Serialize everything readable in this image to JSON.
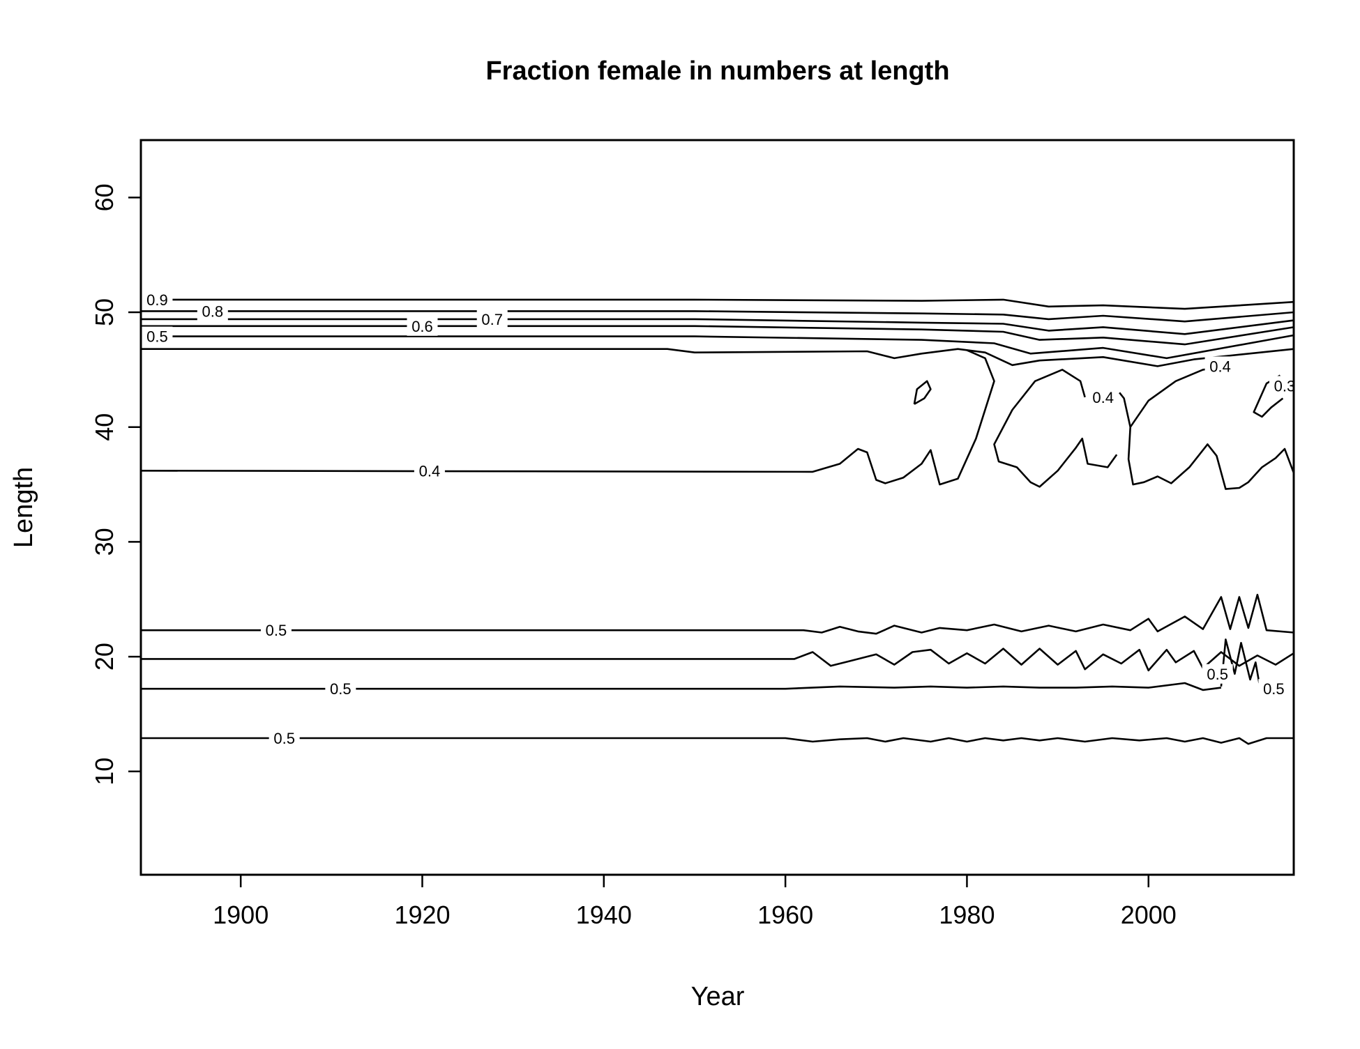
{
  "chart_data": {
    "type": "contour",
    "title": "Fraction female in numbers at length",
    "xlabel": "Year",
    "ylabel": "Length",
    "xlim": [
      1889,
      2016
    ],
    "ylim": [
      1,
      65
    ],
    "xticks": [
      1900,
      1920,
      1940,
      1960,
      1980,
      2000
    ],
    "yticks": [
      10,
      20,
      30,
      40,
      50,
      60
    ],
    "x_tick_labels": [
      "1900",
      "1920",
      "1940",
      "1960",
      "1980",
      "2000"
    ],
    "y_tick_labels": [
      "10",
      "20",
      "30",
      "40",
      "50",
      "60"
    ],
    "grid": false,
    "legend": "none",
    "line_color": "#000000",
    "contours": [
      {
        "level": 0.9,
        "label": "0.9",
        "points": [
          [
            1889,
            51.1
          ],
          [
            1950,
            51.1
          ],
          [
            1975,
            51.0
          ],
          [
            1984,
            51.1
          ],
          [
            1989,
            50.5
          ],
          [
            1995,
            50.6
          ],
          [
            2004,
            50.3
          ],
          [
            2016,
            50.9
          ]
        ]
      },
      {
        "level": 0.8,
        "label": "0.8",
        "points": [
          [
            1889,
            50.1
          ],
          [
            1950,
            50.1
          ],
          [
            1975,
            49.9
          ],
          [
            1984,
            49.8
          ],
          [
            1989,
            49.4
          ],
          [
            1995,
            49.7
          ],
          [
            2004,
            49.2
          ],
          [
            2016,
            50.0
          ]
        ]
      },
      {
        "level": 0.7,
        "label": "0.7",
        "points": [
          [
            1889,
            49.4
          ],
          [
            1950,
            49.4
          ],
          [
            1975,
            49.1
          ],
          [
            1984,
            49.0
          ],
          [
            1989,
            48.4
          ],
          [
            1995,
            48.7
          ],
          [
            2004,
            48.1
          ],
          [
            2016,
            49.3
          ]
        ]
      },
      {
        "level": 0.6,
        "label": "0.6",
        "points": [
          [
            1889,
            48.8
          ],
          [
            1950,
            48.8
          ],
          [
            1975,
            48.5
          ],
          [
            1984,
            48.3
          ],
          [
            1988,
            47.6
          ],
          [
            1995,
            47.8
          ],
          [
            2004,
            47.2
          ],
          [
            2016,
            48.7
          ]
        ]
      },
      {
        "level": 0.5,
        "label": "0.5",
        "points": [
          [
            1889,
            47.9
          ],
          [
            1950,
            47.9
          ],
          [
            1975,
            47.6
          ],
          [
            1983,
            47.3
          ],
          [
            1987,
            46.4
          ],
          [
            1995,
            46.9
          ],
          [
            2002,
            46.0
          ],
          [
            2016,
            48.0
          ]
        ]
      },
      {
        "level": 0.4,
        "label": "",
        "points": [
          [
            1889,
            46.8
          ],
          [
            1947,
            46.8
          ],
          [
            1950,
            46.5
          ],
          [
            1969,
            46.6
          ],
          [
            1972,
            46.0
          ],
          [
            1975,
            46.4
          ],
          [
            1979,
            46.8
          ],
          [
            1982,
            46.5
          ],
          [
            1985,
            45.4
          ],
          [
            1988,
            45.8
          ],
          [
            1995,
            46.1
          ],
          [
            2001,
            45.3
          ],
          [
            2005,
            45.9
          ],
          [
            2016,
            46.8
          ]
        ]
      },
      {
        "level": 0.4,
        "label": "0.4",
        "points": [
          [
            1889,
            36.2
          ],
          [
            1963,
            36.1
          ],
          [
            1966,
            36.8
          ],
          [
            1968,
            38.1
          ],
          [
            1969,
            37.8
          ],
          [
            1970,
            35.4
          ],
          [
            1971,
            35.1
          ],
          [
            1973,
            35.6
          ],
          [
            1975,
            36.8
          ],
          [
            1976,
            38.0
          ],
          [
            1977,
            35.0
          ],
          [
            1979,
            35.5
          ],
          [
            1981,
            39.0
          ],
          [
            1983,
            44.0
          ],
          [
            1982,
            46.0
          ],
          [
            1980,
            46.7
          ]
        ]
      },
      {
        "level": 0.4,
        "label": "",
        "points": [
          [
            1974.2,
            42.0
          ],
          [
            1974.5,
            43.3
          ],
          [
            1975.6,
            44.0
          ],
          [
            1976.0,
            43.3
          ],
          [
            1975.3,
            42.5
          ],
          [
            1974.2,
            42.0
          ]
        ]
      },
      {
        "level": 0.4,
        "label": "0.4",
        "points": [
          [
            1993.0,
            42.6
          ],
          [
            1992.5,
            44.0
          ],
          [
            1990.5,
            45.0
          ],
          [
            1987.5,
            44.0
          ],
          [
            1985.0,
            41.5
          ],
          [
            1983.0,
            38.5
          ],
          [
            1983.5,
            37.0
          ],
          [
            1985.5,
            36.5
          ],
          [
            1987,
            35.2
          ],
          [
            1988,
            34.8
          ],
          [
            1990,
            36.2
          ],
          [
            1992,
            38.2
          ],
          [
            1992.7,
            39.0
          ],
          [
            1993.3,
            36.8
          ],
          [
            1995.5,
            36.5
          ],
          [
            1996.5,
            37.6
          ]
        ]
      },
      {
        "level": 0.4,
        "label": "0.4",
        "points": [
          [
            1996.8,
            43.0
          ],
          [
            1997.3,
            42.5
          ],
          [
            1998,
            40.0
          ],
          [
            1997.8,
            37.2
          ],
          [
            1998.3,
            35.0
          ],
          [
            1999.5,
            35.2
          ],
          [
            2001,
            35.7
          ],
          [
            2002.5,
            35.1
          ],
          [
            2004.5,
            36.5
          ],
          [
            2006.5,
            38.5
          ],
          [
            2007.5,
            37.5
          ],
          [
            2008.5,
            34.6
          ],
          [
            2010,
            34.7
          ],
          [
            2011,
            35.2
          ],
          [
            2012.5,
            36.5
          ],
          [
            2014,
            37.3
          ],
          [
            2015,
            38.1
          ],
          [
            2016,
            36.0
          ]
        ]
      },
      {
        "level": 0.4,
        "label": "",
        "points": [
          [
            1998,
            40.0
          ],
          [
            2000,
            42.3
          ],
          [
            2003,
            44.0
          ],
          [
            2006,
            45.0
          ],
          [
            2008,
            45.2
          ]
        ]
      },
      {
        "level": 0.3,
        "label": "0.3",
        "points": [
          [
            2014.5,
            44.5
          ],
          [
            2013,
            43.8
          ],
          [
            2011.6,
            41.3
          ],
          [
            2012.5,
            40.9
          ],
          [
            2013.5,
            41.7
          ],
          [
            2014.8,
            42.5
          ]
        ]
      },
      {
        "level": 0.5,
        "label": "0.5",
        "points": [
          [
            1889,
            22.3
          ],
          [
            1962,
            22.3
          ],
          [
            1964,
            22.1
          ],
          [
            1966,
            22.6
          ],
          [
            1968,
            22.2
          ],
          [
            1970,
            22.0
          ],
          [
            1972,
            22.7
          ],
          [
            1975,
            22.1
          ],
          [
            1977,
            22.5
          ],
          [
            1980,
            22.3
          ],
          [
            1983,
            22.8
          ],
          [
            1986,
            22.2
          ],
          [
            1989,
            22.7
          ],
          [
            1992,
            22.2
          ],
          [
            1995,
            22.8
          ],
          [
            1998,
            22.3
          ],
          [
            2000,
            23.3
          ],
          [
            2001,
            22.2
          ],
          [
            2004,
            23.5
          ],
          [
            2006,
            22.4
          ],
          [
            2008,
            25.2
          ],
          [
            2009,
            22.4
          ],
          [
            2010,
            25.2
          ],
          [
            2011,
            22.5
          ],
          [
            2012,
            25.4
          ],
          [
            2013,
            22.3
          ],
          [
            2016,
            22.1
          ]
        ]
      },
      {
        "level": 0.5,
        "label": "",
        "points": [
          [
            1889,
            19.8
          ],
          [
            1961,
            19.8
          ],
          [
            1963,
            20.4
          ],
          [
            1965,
            19.2
          ],
          [
            1967,
            19.6
          ],
          [
            1970,
            20.2
          ],
          [
            1972,
            19.3
          ],
          [
            1974,
            20.4
          ],
          [
            1976,
            20.6
          ],
          [
            1978,
            19.4
          ],
          [
            1980,
            20.3
          ],
          [
            1982,
            19.4
          ],
          [
            1984,
            20.7
          ],
          [
            1986,
            19.3
          ],
          [
            1988,
            20.7
          ],
          [
            1990,
            19.3
          ],
          [
            1992,
            20.5
          ],
          [
            1993,
            18.9
          ],
          [
            1995,
            20.2
          ],
          [
            1997,
            19.4
          ],
          [
            1999,
            20.6
          ],
          [
            2000,
            18.8
          ],
          [
            2002,
            20.6
          ],
          [
            2003,
            19.5
          ],
          [
            2005,
            20.5
          ],
          [
            2006,
            19.0
          ],
          [
            2008,
            20.4
          ],
          [
            2010,
            19.2
          ],
          [
            2012,
            20.1
          ],
          [
            2014,
            19.3
          ],
          [
            2016,
            20.3
          ]
        ]
      },
      {
        "level": 0.5,
        "label": "0.5",
        "points": [
          [
            2008,
            17.4
          ],
          [
            2008.5,
            21.5
          ],
          [
            2009.5,
            18.5
          ],
          [
            2010.2,
            21.2
          ],
          [
            2011.2,
            18.0
          ],
          [
            2011.8,
            19.5
          ],
          [
            2012.2,
            17.7
          ]
        ]
      },
      {
        "level": 0.5,
        "label": "0.5",
        "points": [
          [
            1889,
            17.2
          ],
          [
            1960,
            17.2
          ],
          [
            1966,
            17.4
          ],
          [
            1972,
            17.3
          ],
          [
            1976,
            17.4
          ],
          [
            1980,
            17.3
          ],
          [
            1984,
            17.4
          ],
          [
            1988,
            17.3
          ],
          [
            1992,
            17.3
          ],
          [
            1996,
            17.4
          ],
          [
            2000,
            17.3
          ],
          [
            2004,
            17.7
          ],
          [
            2006,
            17.1
          ],
          [
            2008,
            17.3
          ]
        ]
      },
      {
        "level": 0.5,
        "label": "0.5",
        "points": [
          [
            1889,
            12.9
          ],
          [
            1960,
            12.9
          ],
          [
            1963,
            12.6
          ],
          [
            1966,
            12.8
          ],
          [
            1969,
            12.9
          ],
          [
            1971,
            12.6
          ],
          [
            1973,
            12.9
          ],
          [
            1976,
            12.6
          ],
          [
            1978,
            12.9
          ],
          [
            1980,
            12.6
          ],
          [
            1982,
            12.9
          ],
          [
            1984,
            12.7
          ],
          [
            1986,
            12.9
          ],
          [
            1988,
            12.7
          ],
          [
            1990,
            12.9
          ],
          [
            1993,
            12.6
          ],
          [
            1996,
            12.9
          ],
          [
            1999,
            12.7
          ],
          [
            2002,
            12.9
          ],
          [
            2004,
            12.6
          ],
          [
            2006,
            12.9
          ],
          [
            2008,
            12.5
          ],
          [
            2010,
            12.9
          ],
          [
            2011,
            12.4
          ],
          [
            2013,
            12.9
          ],
          [
            2016,
            12.9
          ]
        ]
      }
    ],
    "contour_labels": [
      {
        "text": "0.9",
        "x": 1890.8,
        "y": 51.1
      },
      {
        "text": "0.8",
        "x": 1896.9,
        "y": 50.1
      },
      {
        "text": "0.7",
        "x": 1927.7,
        "y": 49.4
      },
      {
        "text": "0.6",
        "x": 1920.0,
        "y": 48.8
      },
      {
        "text": "0.5",
        "x": 1890.8,
        "y": 47.9
      },
      {
        "text": "0.4",
        "x": 1920.8,
        "y": 36.2
      },
      {
        "text": "0.4",
        "x": 2007.9,
        "y": 45.3
      },
      {
        "text": "0.4",
        "x": 1995.0,
        "y": 42.6
      },
      {
        "text": "0.3",
        "x": 2015.0,
        "y": 43.6
      },
      {
        "text": "0.5",
        "x": 1903.9,
        "y": 22.3
      },
      {
        "text": "0.5",
        "x": 1911.0,
        "y": 17.2
      },
      {
        "text": "0.5",
        "x": 2013.8,
        "y": 17.2
      },
      {
        "text": "0.5",
        "x": 2007.6,
        "y": 18.5
      },
      {
        "text": "0.5",
        "x": 1904.8,
        "y": 12.9
      }
    ]
  }
}
